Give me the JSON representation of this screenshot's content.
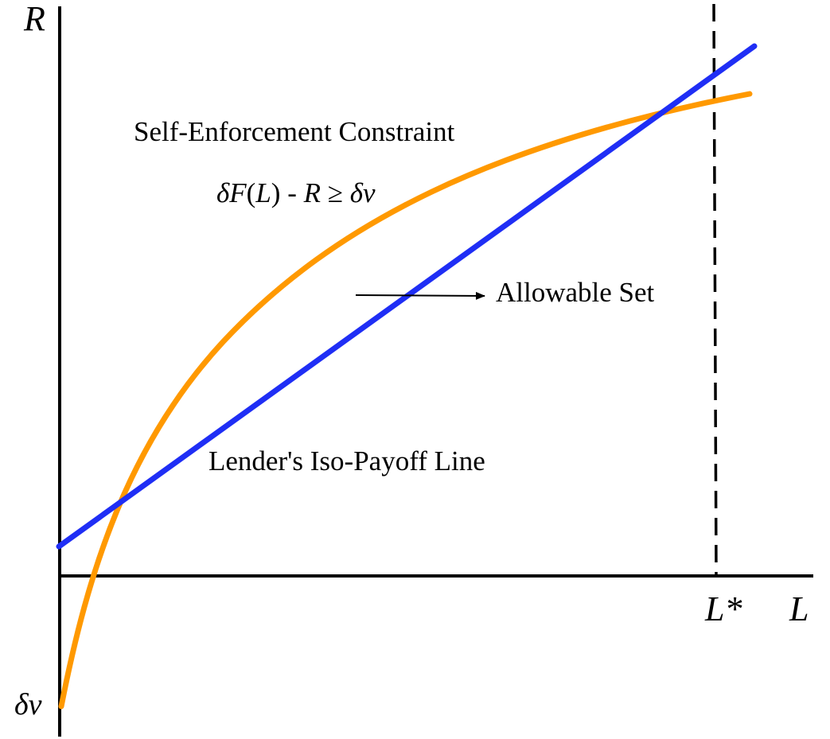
{
  "diagram": {
    "axes": {
      "y_label": "R",
      "x_label": "L",
      "lstar_label": "L*",
      "origin_label": "δv"
    },
    "curves": {
      "self_enforcement": {
        "title": "Self-Enforcement Constraint",
        "color": "#FF9900"
      },
      "iso_payoff": {
        "title": "Lender's Iso-Payoff Line",
        "color": "#1F2EF5"
      }
    },
    "inequality": {
      "delta1": "δ",
      "F": "F",
      "open_paren": "(",
      "L": "L",
      "close_paren": ")",
      "middle": " - ",
      "R": "R",
      "geq": " ≥ ",
      "delta2": "δ",
      "v": "v"
    },
    "annotation": {
      "allowable_set": "Allowable Set"
    },
    "colors": {
      "axis": "#000000",
      "dashed_line": "#000000",
      "arrow": "#000000"
    }
  }
}
